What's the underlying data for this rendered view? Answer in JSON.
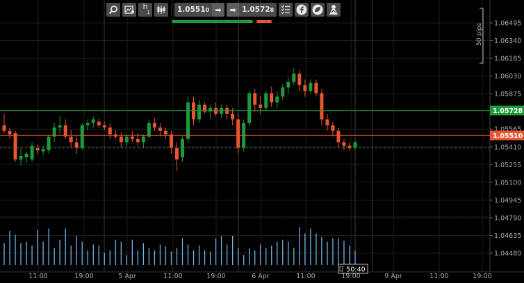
{
  "toolbar": {
    "timeframe": "h",
    "timeframe_sub": "1",
    "sell_price_main": "1.0551",
    "sell_price_pip": "0",
    "buy_price_main": "1.0572",
    "buy_price_pip": "8",
    "icons": [
      "zoom-icon",
      "chart-settings-icon",
      "timeframe-selector",
      "candle-type-icon",
      "sell-arrow-icon",
      "buy-arrow-icon",
      "checklist-icon",
      "facebook-icon",
      "leaf-icon",
      "trader-icon"
    ]
  },
  "colors": {
    "bull": "#1e9a3a",
    "bear": "#e8552e",
    "volume": "#6fb6e8",
    "ask_line": "#1e9a3a",
    "bid_line": "#e8552e"
  },
  "price_axis": {
    "ticks": [
      "1.06495",
      "1.06340",
      "1.06185",
      "1.06030",
      "1.05875",
      "1.05720",
      "1.05565",
      "1.05410",
      "1.05255",
      "1.05100",
      "1.04945",
      "1.04790",
      "1.04635",
      "1.04480"
    ],
    "ask_label_main": "1.0572",
    "ask_label_pip": "8",
    "bid_label_main": "1.0551",
    "bid_label_pip": "0",
    "pips_scale": "50 pips"
  },
  "time_axis": {
    "ticks": [
      "11:00",
      "19:00",
      "5 Apr",
      "11:00",
      "19:00",
      "6 Apr",
      "11:00",
      "19:00",
      "9 Apr",
      "11:00",
      "19:00"
    ],
    "countdown": "50:40"
  },
  "chart_data": {
    "type": "candlestick",
    "ylim": [
      1.044,
      1.066
    ],
    "ask": 1.05728,
    "bid": 1.0551,
    "candles": [
      [
        1.056,
        1.057,
        1.0553,
        1.0555
      ],
      [
        1.0555,
        1.0558,
        1.0548,
        1.0552
      ],
      [
        1.0553,
        1.0555,
        1.0528,
        1.053
      ],
      [
        1.053,
        1.054,
        1.0525,
        1.0533
      ],
      [
        1.0532,
        1.0537,
        1.0527,
        1.0535
      ],
      [
        1.053,
        1.0545,
        1.0528,
        1.0542
      ],
      [
        1.054,
        1.0543,
        1.0535,
        1.0538
      ],
      [
        1.0537,
        1.0542,
        1.0534,
        1.0539
      ],
      [
        1.0538,
        1.0552,
        1.0535,
        1.055
      ],
      [
        1.055,
        1.0562,
        1.0545,
        1.0558
      ],
      [
        1.0558,
        1.0568,
        1.0552,
        1.056
      ],
      [
        1.056,
        1.0565,
        1.0548,
        1.055
      ],
      [
        1.055,
        1.0556,
        1.054,
        1.0545
      ],
      [
        1.0545,
        1.055,
        1.0535,
        1.054
      ],
      [
        1.054,
        1.0562,
        1.0538,
        1.056
      ],
      [
        1.056,
        1.0565,
        1.0555,
        1.0562
      ],
      [
        1.0562,
        1.0568,
        1.0558,
        1.0565
      ],
      [
        1.0563,
        1.0566,
        1.0558,
        1.056
      ],
      [
        1.056,
        1.0563,
        1.0556,
        1.0558
      ],
      [
        1.0558,
        1.0562,
        1.0548,
        1.0552
      ],
      [
        1.0552,
        1.0556,
        1.0548,
        1.055
      ],
      [
        1.055,
        1.0554,
        1.054,
        1.0545
      ],
      [
        1.0545,
        1.0552,
        1.0542,
        1.055
      ],
      [
        1.055,
        1.0555,
        1.0545,
        1.0548
      ],
      [
        1.0548,
        1.0553,
        1.0542,
        1.0545
      ],
      [
        1.0545,
        1.0552,
        1.054,
        1.055
      ],
      [
        1.055,
        1.0565,
        1.0548,
        1.0562
      ],
      [
        1.0562,
        1.0566,
        1.0555,
        1.0558
      ],
      [
        1.0558,
        1.0562,
        1.055,
        1.0555
      ],
      [
        1.0555,
        1.0558,
        1.0548,
        1.0552
      ],
      [
        1.0552,
        1.0555,
        1.0535,
        1.054
      ],
      [
        1.054,
        1.0545,
        1.052,
        1.053
      ],
      [
        1.0532,
        1.055,
        1.0528,
        1.0548
      ],
      [
        1.0548,
        1.0585,
        1.0545,
        1.058
      ],
      [
        1.058,
        1.0585,
        1.056,
        1.0565
      ],
      [
        1.0565,
        1.0582,
        1.0562,
        1.0578
      ],
      [
        1.0578,
        1.058,
        1.057,
        1.0572
      ],
      [
        1.0572,
        1.0578,
        1.0565,
        1.0575
      ],
      [
        1.0575,
        1.058,
        1.0568,
        1.057
      ],
      [
        1.057,
        1.0578,
        1.0566,
        1.0575
      ],
      [
        1.0575,
        1.0578,
        1.0565,
        1.057
      ],
      [
        1.057,
        1.0575,
        1.056,
        1.0565
      ],
      [
        1.0565,
        1.057,
        1.0535,
        1.054
      ],
      [
        1.054,
        1.0565,
        1.0537,
        1.0562
      ],
      [
        1.0562,
        1.059,
        1.056,
        1.0588
      ],
      [
        1.0588,
        1.0592,
        1.0572,
        1.0578
      ],
      [
        1.0578,
        1.0585,
        1.057,
        1.0575
      ],
      [
        1.0575,
        1.059,
        1.0573,
        1.0588
      ],
      [
        1.0588,
        1.0594,
        1.0576,
        1.058
      ],
      [
        1.058,
        1.059,
        1.0575,
        1.0585
      ],
      [
        1.0585,
        1.0596,
        1.0582,
        1.0593
      ],
      [
        1.0593,
        1.0602,
        1.0588,
        1.0598
      ],
      [
        1.0598,
        1.061,
        1.0595,
        1.0605
      ],
      [
        1.0605,
        1.0608,
        1.059,
        1.0595
      ],
      [
        1.0595,
        1.06,
        1.0585,
        1.059
      ],
      [
        1.059,
        1.06,
        1.0588,
        1.0597
      ],
      [
        1.0597,
        1.06,
        1.0585,
        1.0588
      ],
      [
        1.0588,
        1.0592,
        1.056,
        1.0565
      ],
      [
        1.0565,
        1.057,
        1.0555,
        1.056
      ],
      [
        1.056,
        1.0563,
        1.055,
        1.0555
      ],
      [
        1.0555,
        1.0558,
        1.054,
        1.0545
      ],
      [
        1.0545,
        1.0548,
        1.0538,
        1.0542
      ],
      [
        1.0542,
        1.0545,
        1.0538,
        1.054
      ],
      [
        1.054,
        1.0548,
        1.0538,
        1.0545
      ]
    ],
    "volume": [
      0.45,
      0.7,
      0.62,
      0.45,
      0.48,
      0.4,
      0.72,
      0.48,
      0.75,
      0.35,
      0.52,
      0.75,
      0.4,
      0.6,
      0.48,
      0.3,
      0.42,
      0.4,
      0.25,
      0.3,
      0.52,
      0.48,
      0.2,
      0.52,
      0.3,
      0.45,
      0.35,
      0.3,
      0.42,
      0.38,
      0.28,
      0.35,
      0.55,
      0.42,
      0.3,
      0.4,
      0.3,
      0.28,
      0.55,
      0.6,
      0.42,
      0.6,
      0.35,
      0.2,
      0.35,
      0.3,
      0.42,
      0.35,
      0.4,
      0.48,
      0.52,
      0.48,
      0.35,
      0.78,
      0.65,
      0.75,
      0.65,
      0.58,
      0.48,
      0.55,
      0.55,
      0.5,
      0.4,
      0.3
    ]
  }
}
